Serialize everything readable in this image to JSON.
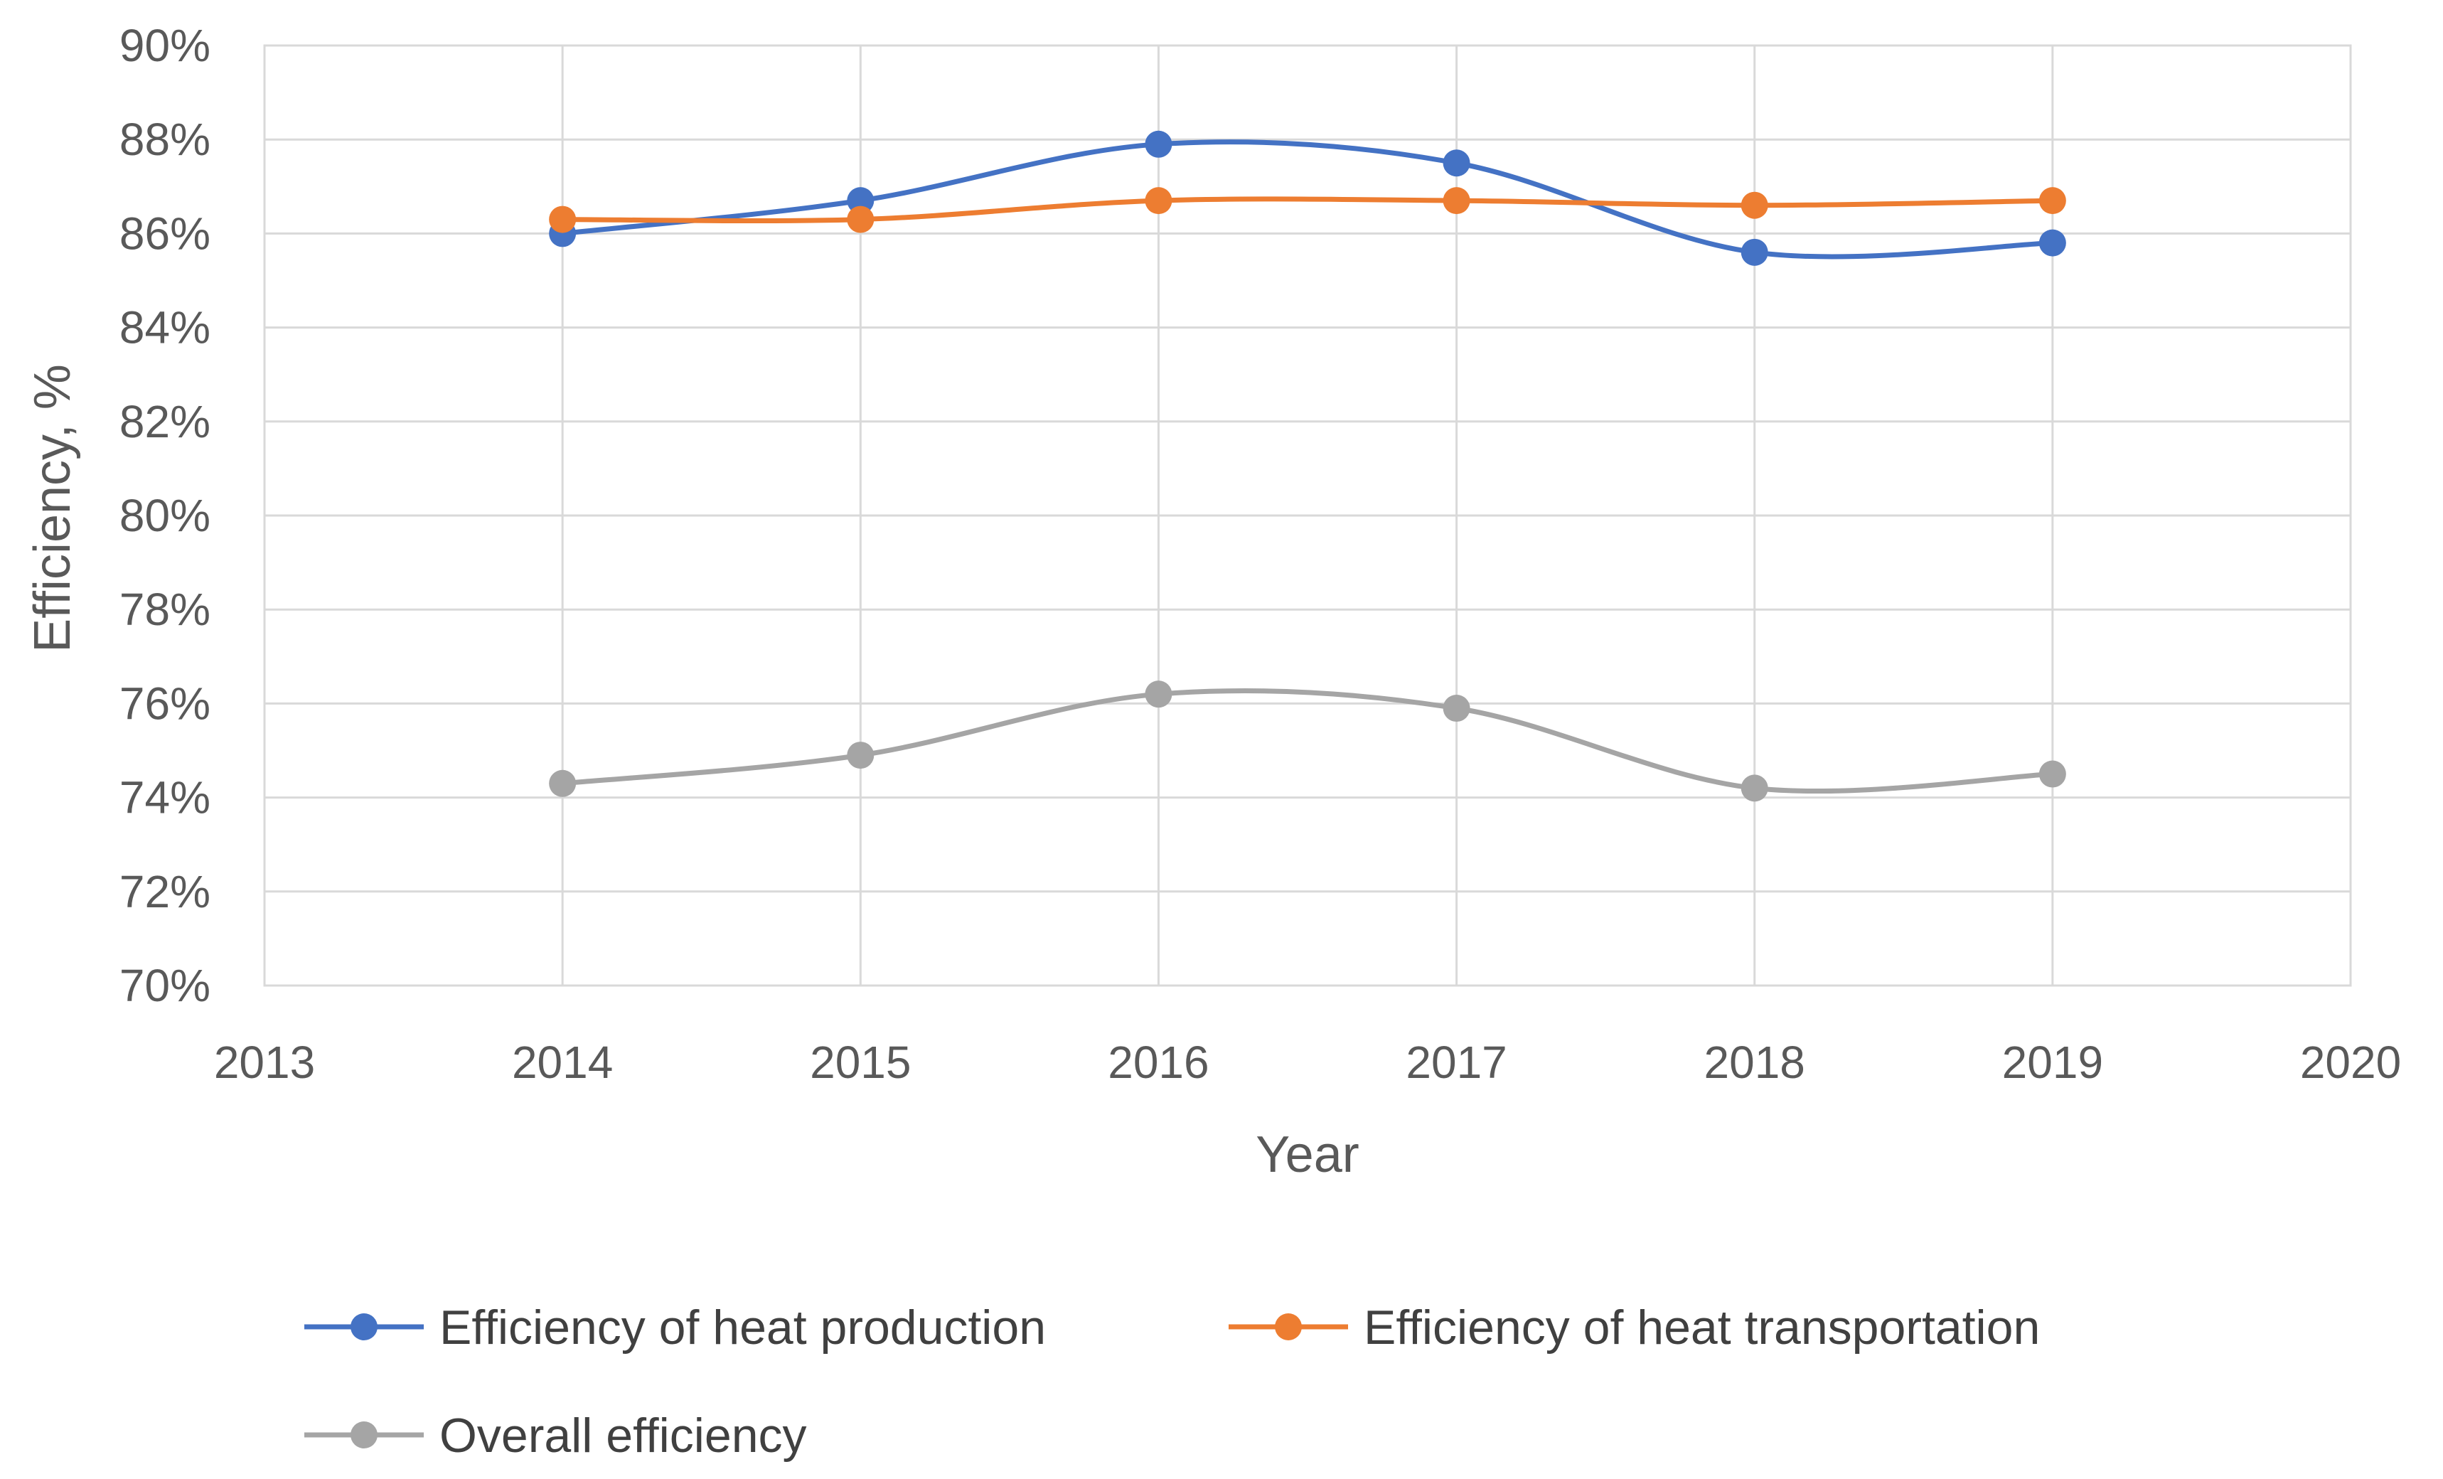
{
  "chart_data": {
    "type": "line",
    "smooth": true,
    "xlabel": "Year",
    "ylabel": "Efficiency, %",
    "xlim": [
      2013,
      2020
    ],
    "ylim": [
      70,
      90
    ],
    "x_ticks": [
      "2013",
      "2014",
      "2015",
      "2016",
      "2017",
      "2018",
      "2019",
      "2020"
    ],
    "y_ticks": [
      "70%",
      "72%",
      "74%",
      "76%",
      "78%",
      "80%",
      "82%",
      "84%",
      "86%",
      "88%",
      "90%"
    ],
    "grid": true,
    "legend_position": "bottom",
    "x": [
      2014,
      2015,
      2016,
      2017,
      2018,
      2019
    ],
    "series": [
      {
        "name": "Efficiency of heat production",
        "color": "#4472C4",
        "values": [
          86.0,
          86.7,
          87.9,
          87.5,
          85.6,
          85.8
        ]
      },
      {
        "name": "Efficiency of heat transportation",
        "color": "#ED7D31",
        "values": [
          86.3,
          86.3,
          86.7,
          86.7,
          86.6,
          86.7
        ]
      },
      {
        "name": "Overall efficiency",
        "color": "#A5A5A5",
        "values": [
          74.3,
          74.9,
          76.2,
          75.9,
          74.2,
          74.5
        ]
      }
    ]
  }
}
